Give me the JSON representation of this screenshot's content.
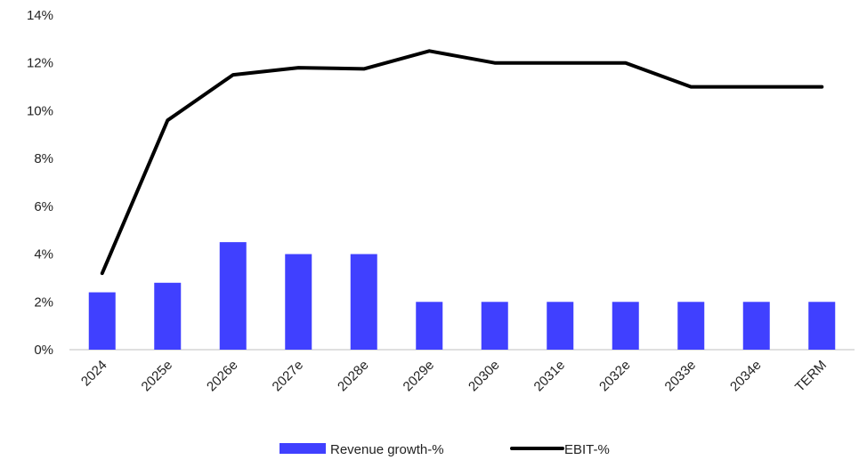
{
  "chart_data": {
    "type": "bar",
    "categories": [
      "2024",
      "2025e",
      "2026e",
      "2027e",
      "2028e",
      "2029e",
      "2030e",
      "2031e",
      "2032e",
      "2033e",
      "2034e",
      "TERM"
    ],
    "series": [
      {
        "name": "Revenue growth-%",
        "type": "bar",
        "color": "#4040ff",
        "values": [
          2.4,
          2.8,
          4.5,
          4.0,
          4.0,
          2.0,
          2.0,
          2.0,
          2.0,
          2.0,
          2.0,
          2.0
        ]
      },
      {
        "name": "EBIT-%",
        "type": "line",
        "color": "#000000",
        "values": [
          3.2,
          9.6,
          11.5,
          11.8,
          11.75,
          12.5,
          12.0,
          12.0,
          12.0,
          11.0,
          11.0,
          11.0
        ]
      }
    ],
    "yticks": [
      "0%",
      "2%",
      "4%",
      "6%",
      "8%",
      "10%",
      "12%",
      "14%"
    ],
    "ylim": [
      0,
      14
    ],
    "grid": false,
    "legend": "bottom-center"
  }
}
